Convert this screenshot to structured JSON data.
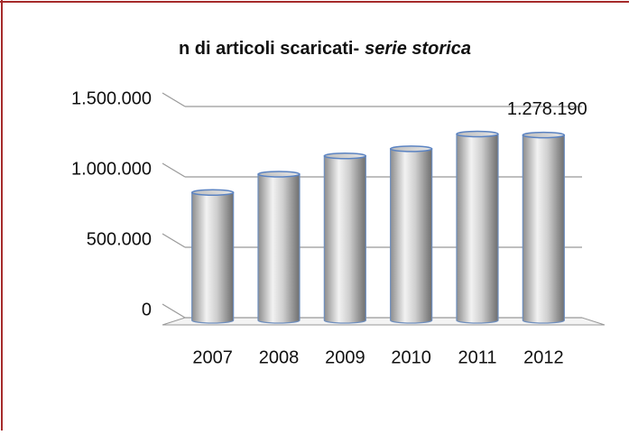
{
  "chart_data": {
    "type": "bar",
    "title": [
      "n di articoli scaricati-",
      "serie storica"
    ],
    "categories": [
      "2007",
      "2008",
      "2009",
      "2010",
      "2011",
      "2012"
    ],
    "values": [
      870000,
      1000000,
      1130000,
      1180000,
      1285000,
      1278190
    ],
    "value_labels": [
      null,
      null,
      null,
      null,
      null,
      "1.278.190"
    ],
    "color": "#a6a6a6",
    "ylim": [
      0,
      1500000
    ],
    "yticks": [
      0,
      {
        "value": 500000,
        "label": "500.000"
      },
      {
        "value": 1000000,
        "label": "1.000.000"
      },
      {
        "value": 1500000,
        "label": "1.500.000"
      }
    ],
    "grid": true
  }
}
